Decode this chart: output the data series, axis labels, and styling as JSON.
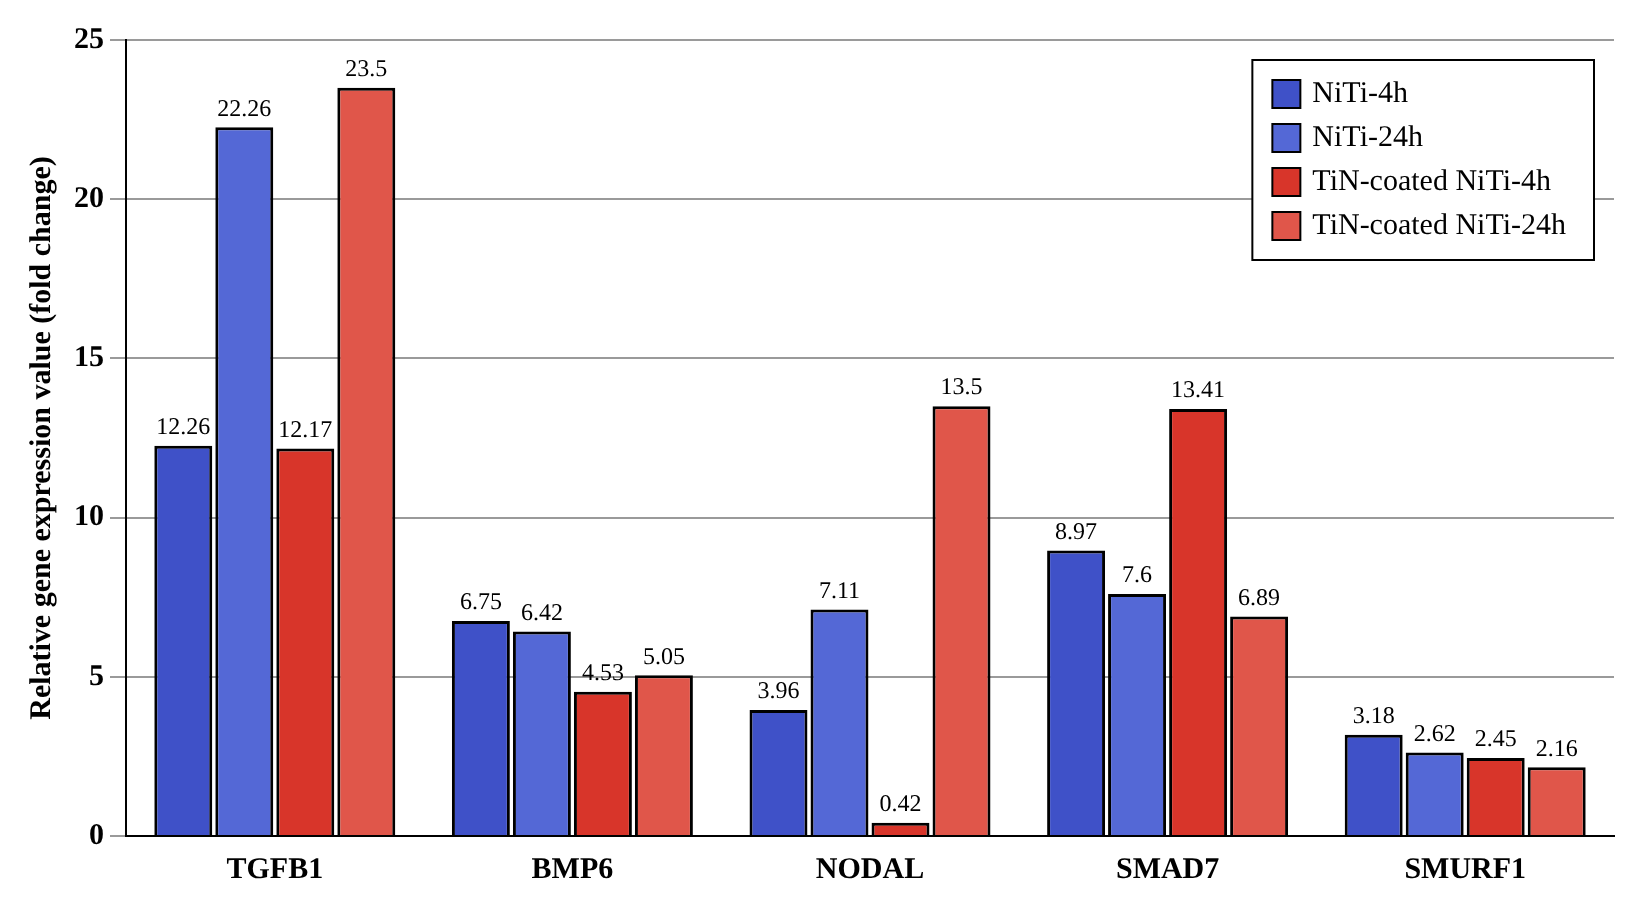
{
  "chart_data": {
    "type": "bar",
    "ylabel": "Relative gene expression value (fold change)",
    "categories": [
      "TGFB1",
      "BMP6",
      "NODAL",
      "SMAD7",
      "SMURF1"
    ],
    "series": [
      {
        "name": "NiTi-4h",
        "color": "#3f51c8",
        "values": [
          12.26,
          6.75,
          3.96,
          8.97,
          3.18
        ]
      },
      {
        "name": "NiTi-24h",
        "color": "#5468d6",
        "values": [
          22.26,
          6.42,
          7.11,
          7.6,
          2.62
        ]
      },
      {
        "name": "TiN-coated NiTi-4h",
        "color": "#d8352a",
        "values": [
          12.17,
          4.53,
          0.42,
          13.41,
          2.45
        ]
      },
      {
        "name": "TiN-coated NiTi-24h",
        "color": "#e0564a",
        "values": [
          23.5,
          5.05,
          13.5,
          6.89,
          2.16
        ]
      }
    ],
    "ylim": [
      0,
      25
    ],
    "yticks": [
      0,
      5,
      10,
      15,
      20,
      25
    ],
    "grid": "y",
    "legend": "top right",
    "data_labels": true
  }
}
